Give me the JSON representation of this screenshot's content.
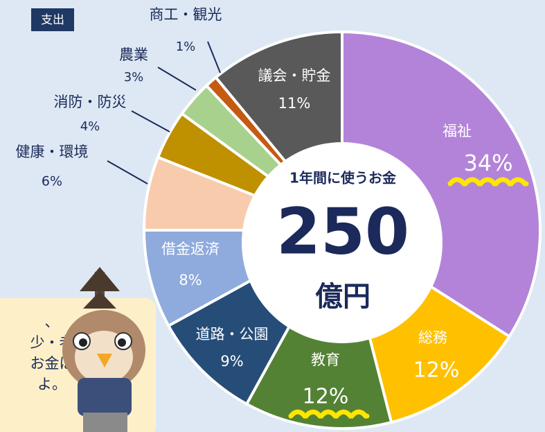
{
  "badge": "支出",
  "chart_data": {
    "type": "donut",
    "categories": [
      "福祉",
      "総務",
      "教育",
      "道路・公園",
      "借金返済",
      "健康・環境",
      "消防・防災",
      "農業",
      "商工・観光",
      "議会・貯金"
    ],
    "values": [
      34,
      12,
      12,
      9,
      8,
      6,
      4,
      3,
      1,
      11
    ],
    "value_labels": [
      "34%",
      "12%",
      "12%",
      "9%",
      "8%",
      "6%",
      "4%",
      "3%",
      "1%",
      "11%"
    ],
    "colors": [
      "#b383d9",
      "#ffc000",
      "#548235",
      "#264d78",
      "#8faadc",
      "#f8cbad",
      "#bf9000",
      "#a9d18e",
      "#c55a11",
      "#595959"
    ],
    "center_title": "1年間に使うお金",
    "center_value": "250",
    "center_unit": "億円"
  },
  "bubble": {
    "lines": [
      "、",
      "少・老",
      "お金は",
      "よ。"
    ]
  }
}
